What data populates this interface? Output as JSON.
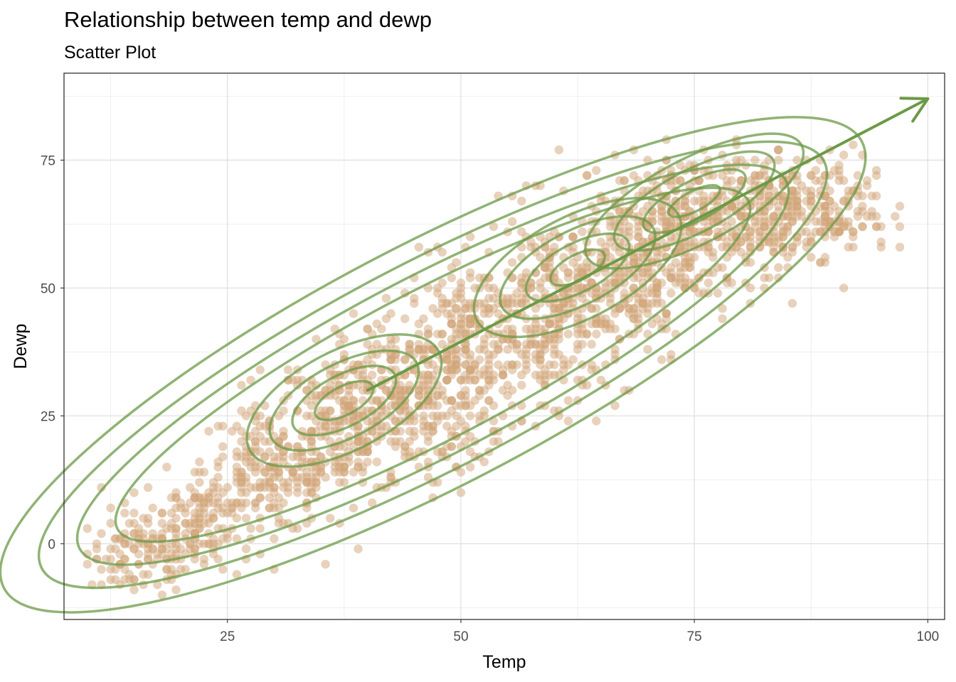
{
  "chart_data": {
    "type": "scatter",
    "title": "Relationship between temp and dewp",
    "subtitle": "Scatter Plot",
    "xlabel": "Temp",
    "ylabel": "Dewp",
    "xlim": [
      7.5,
      101.8
    ],
    "ylim": [
      -14.8,
      92
    ],
    "x_ticks": [
      25,
      50,
      75,
      100
    ],
    "y_ticks": [
      0,
      25,
      50,
      75
    ],
    "grid": true,
    "colors": {
      "points": "#d2a679",
      "contours": "#6b9a45",
      "arrow": "#6b9a45"
    },
    "point_clusters": [
      {
        "cx": 16,
        "cy": -2,
        "sx": 3,
        "sy": 4,
        "n": 120
      },
      {
        "cx": 22,
        "cy": 5,
        "sx": 3,
        "sy": 5,
        "n": 120
      },
      {
        "cx": 30,
        "cy": 14,
        "sx": 4,
        "sy": 6,
        "n": 220
      },
      {
        "cx": 38,
        "cy": 24,
        "sx": 4,
        "sy": 7,
        "n": 260
      },
      {
        "cx": 45,
        "cy": 30,
        "sx": 4,
        "sy": 8,
        "n": 260
      },
      {
        "cx": 52,
        "cy": 38,
        "sx": 4,
        "sy": 9,
        "n": 260
      },
      {
        "cx": 60,
        "cy": 46,
        "sx": 4,
        "sy": 9,
        "n": 260
      },
      {
        "cx": 67,
        "cy": 53,
        "sx": 4,
        "sy": 9,
        "n": 260
      },
      {
        "cx": 74,
        "cy": 62,
        "sx": 4,
        "sy": 7,
        "n": 280
      },
      {
        "cx": 82,
        "cy": 65,
        "sx": 4,
        "sy": 6,
        "n": 260
      },
      {
        "cx": 90,
        "cy": 66,
        "sx": 3,
        "sy": 5,
        "n": 120
      }
    ],
    "density_peaks": [
      {
        "x": 37.5,
        "y": 29
      },
      {
        "x": 62.5,
        "y": 55
      },
      {
        "x": 75,
        "y": 68
      }
    ],
    "arrow": {
      "from": [
        40,
        30
      ],
      "to": [
        100,
        87
      ]
    }
  }
}
